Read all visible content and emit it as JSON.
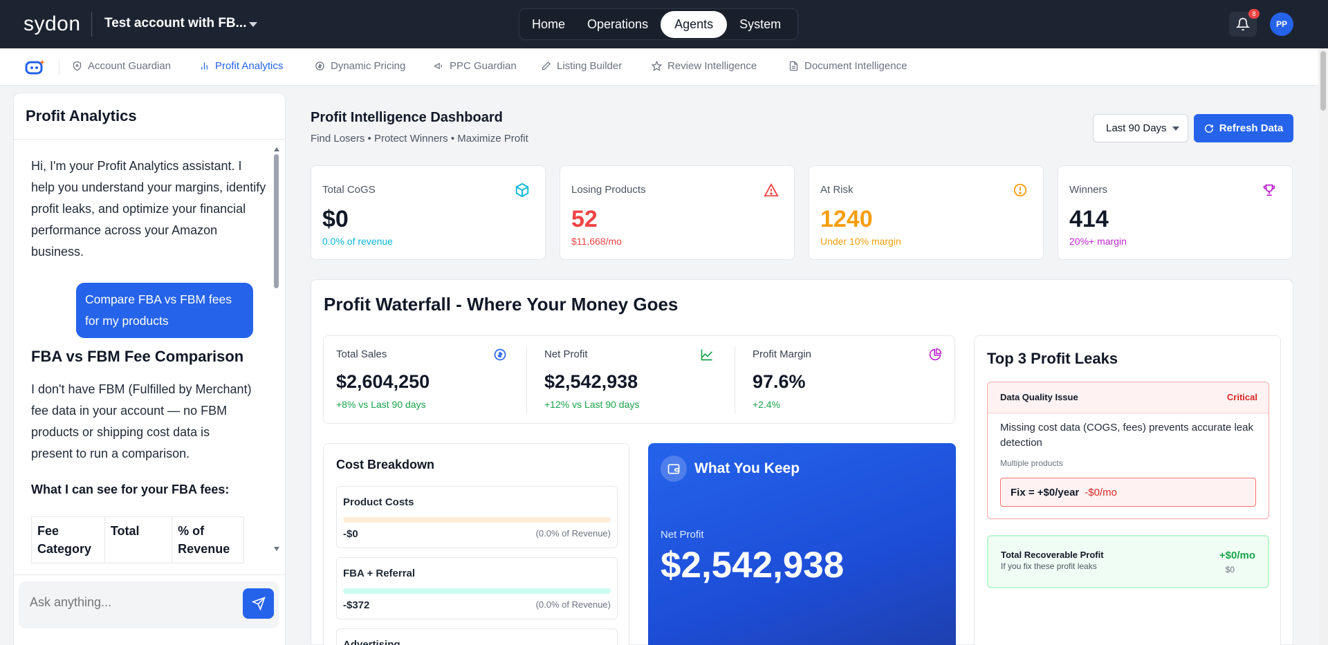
{
  "topbar": {
    "logo": "sydon",
    "account": "Test account with FB...",
    "nav": [
      "Home",
      "Operations",
      "Agents",
      "System"
    ],
    "active_nav": "Agents",
    "notification_count": "8",
    "avatar_initials": "PP"
  },
  "subnav": {
    "items": [
      {
        "label": "Account Guardian",
        "icon": "shield-icon"
      },
      {
        "label": "Profit Analytics",
        "icon": "bar-chart-icon",
        "active": true
      },
      {
        "label": "Dynamic Pricing",
        "icon": "dollar-icon"
      },
      {
        "label": "PPC Guardian",
        "icon": "megaphone-icon"
      },
      {
        "label": "Listing Builder",
        "icon": "pencil-icon"
      },
      {
        "label": "Review Intelligence",
        "icon": "star-icon"
      },
      {
        "label": "Document Intelligence",
        "icon": "document-icon"
      }
    ]
  },
  "chat": {
    "title": "Profit Analytics",
    "assistant_intro": "Hi, I'm your Profit Analytics assistant. I help you understand your margins, identify profit leaks, and optimize your financial performance across your Amazon business.",
    "user_message": "Compare FBA vs FBM fees for my products",
    "response_heading": "FBA vs FBM Fee Comparison",
    "response_text": "I don't have FBM (Fulfilled by Merchant) fee data in your account — no FBM products or shipping cost data is present to run a comparison.",
    "response_bold": "What I can see for your FBA fees:",
    "table_headers": [
      "Fee Category",
      "Total",
      "% of Revenue"
    ],
    "input_placeholder": "Ask anything..."
  },
  "dashboard": {
    "title": "Profit Intelligence Dashboard",
    "subtitle": "Find Losers • Protect Winners • Maximize Profit",
    "range": "Last 90 Days",
    "refresh_label": "Refresh Data",
    "kpis": [
      {
        "label": "Total CoGS",
        "value": "$0",
        "note": "0.0% of revenue",
        "color": "#06b6d4",
        "value_color": "#111827",
        "icon": "cube-icon"
      },
      {
        "label": "Losing Products",
        "value": "52",
        "note": "$11,668/mo",
        "color": "#ef4444",
        "value_color": "#ef4444",
        "icon": "warning-icon"
      },
      {
        "label": "At Risk",
        "value": "1240",
        "note": "Under 10% margin",
        "color": "#f59e0b",
        "value_color": "#f59e0b",
        "icon": "alert-circle-icon"
      },
      {
        "label": "Winners",
        "value": "414",
        "note": "20%+ margin",
        "color": "#c026d3",
        "value_color": "#111827",
        "icon": "trophy-icon"
      }
    ],
    "waterfall": {
      "title": "Profit Waterfall - Where Your Money Goes",
      "summary": [
        {
          "label": "Total Sales",
          "value": "$2,604,250",
          "change": "+8% vs Last 90 days",
          "icon": "dollar-circle-icon",
          "color": "#2563eb"
        },
        {
          "label": "Net Profit",
          "value": "$2,542,938",
          "change": "+12% vs Last 90 days",
          "icon": "trend-up-icon",
          "color": "#16a34a"
        },
        {
          "label": "Profit Margin",
          "value": "97.6%",
          "change": "+2.4%",
          "icon": "pie-icon",
          "color": "#c026d3"
        }
      ],
      "cost_breakdown": {
        "title": "Cost Breakdown",
        "items": [
          {
            "name": "Product Costs",
            "amount": "-$0",
            "pct": "(0.0% of Revenue)",
            "bar_color": "#ffedd5"
          },
          {
            "name": "FBA + Referral",
            "amount": "-$372",
            "pct": "(0.0% of Revenue)",
            "bar_color": "#ccfbf1"
          },
          {
            "name": "Advertising",
            "amount": "",
            "pct": "",
            "bar_color": "#e0e7ff"
          }
        ]
      },
      "keep": {
        "title": "What You Keep",
        "label": "Net Profit",
        "value": "$2,542,938"
      },
      "leaks": {
        "title": "Top 3 Profit Leaks",
        "item": {
          "type": "Data Quality Issue",
          "severity": "Critical",
          "desc": "Missing cost data (COGS, fees) prevents accurate leak detection",
          "meta": "Multiple products",
          "fix": "Fix = +$0/year",
          "fix_mo": "-$0/mo"
        },
        "recover": {
          "title": "Total Recoverable Profit",
          "sub": "If you fix these profit leaks",
          "value": "+$0/mo",
          "value2": "$0"
        }
      }
    }
  }
}
